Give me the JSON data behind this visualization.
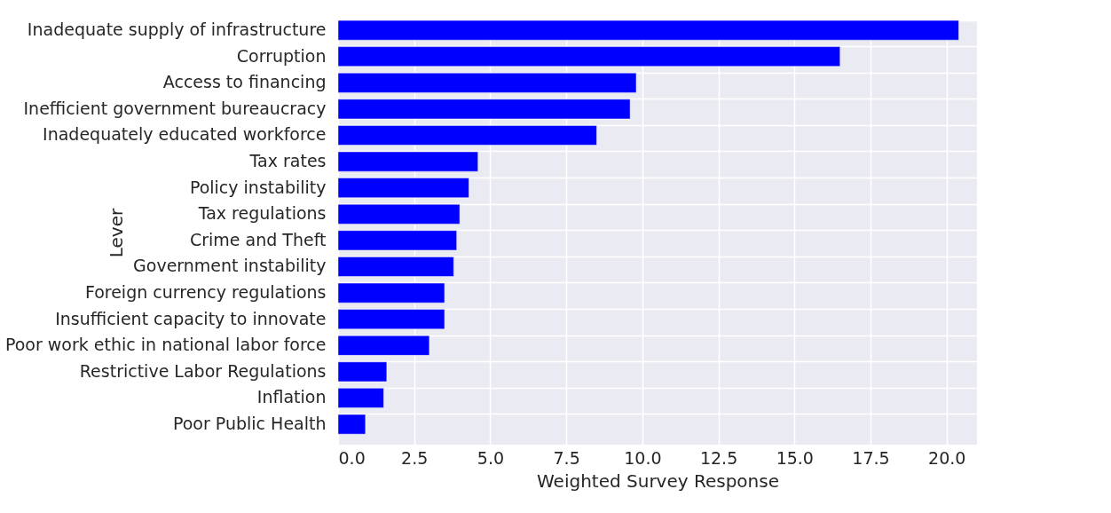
{
  "chart_data": {
    "type": "bar",
    "orientation": "horizontal",
    "xlabel": "Weighted Survey Response",
    "ylabel": "Lever",
    "categories": [
      "Inadequate supply of infrastructure",
      "Corruption",
      "Access to financing",
      "Inefficient government bureaucracy",
      "Inadequately educated workforce",
      "Tax rates",
      "Policy instability",
      "Tax regulations",
      "Crime and Theft",
      "Government instability",
      "Foreign currency regulations",
      "Insufficient capacity to innovate",
      "Poor work ethic in national labor force",
      "Restrictive Labor Regulations",
      "Inflation",
      "Poor Public Health"
    ],
    "values": [
      20.4,
      16.5,
      9.8,
      9.6,
      8.5,
      4.6,
      4.3,
      4.0,
      3.9,
      3.8,
      3.5,
      3.5,
      3.0,
      1.6,
      1.5,
      0.9
    ],
    "color": "#0000ff",
    "xlim": [
      0,
      21
    ],
    "xticks": [
      {
        "value": 0,
        "label": "0.0"
      },
      2.5,
      {
        "value": 5,
        "label": "5.0"
      },
      7.5,
      {
        "value": 10,
        "label": "10.0"
      },
      12.5,
      {
        "value": 15,
        "label": "15.0"
      },
      17.5,
      {
        "value": 20,
        "label": "20.0"
      }
    ],
    "grid": true
  }
}
